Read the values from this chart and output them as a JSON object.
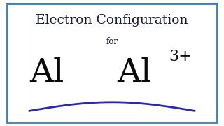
{
  "title": "Electron Configuration",
  "subtitle": "for",
  "symbol_left": "Al",
  "symbol_right": "Al",
  "superscript": "3+",
  "bg_color": "#ffffff",
  "border_color": "#3a7abf",
  "title_color": "#1a1a3a",
  "subtitle_color": "#1a1a3a",
  "symbol_color": "#0a0a0a",
  "wave_color": "#2a2aaa",
  "title_fontsize": 13.5,
  "subtitle_fontsize": 8.5,
  "symbol_fontsize": 34,
  "super_fontsize": 16
}
